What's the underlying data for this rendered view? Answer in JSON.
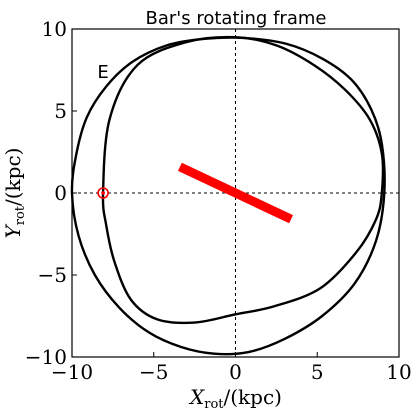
{
  "chart_data": {
    "type": "line",
    "title": "Bar's rotating frame",
    "xlabel": {
      "var": "X",
      "sub": "rot",
      "unit": "/(kpc)"
    },
    "ylabel": {
      "var": "Y",
      "sub": "rot",
      "unit": "/(kpc)"
    },
    "xlim": [
      -10,
      10
    ],
    "ylim": [
      -10,
      10
    ],
    "xticks": [
      -10,
      -5,
      0,
      5,
      10
    ],
    "yticks": [
      -10,
      -5,
      0,
      5,
      10
    ],
    "xtick_labels": [
      "−10",
      "−5",
      "0",
      "5",
      "10"
    ],
    "ytick_labels": [
      "−10",
      "−5",
      "0",
      "5",
      "10"
    ],
    "grid": false,
    "reference_lines": [
      {
        "orientation": "vertical",
        "value": 0,
        "style": "dashed"
      },
      {
        "orientation": "horizontal",
        "value": 0,
        "style": "dashed"
      }
    ],
    "annotations": [
      {
        "text": "E",
        "x": -8.1,
        "y": 7.0
      }
    ],
    "bar": {
      "x": [
        -3.4,
        3.4
      ],
      "y": [
        1.6,
        -1.6
      ],
      "color": "#ff0000"
    },
    "sun": {
      "x": -8.1,
      "y": 0.0,
      "color": "#ff0000"
    },
    "series": [
      {
        "color": "#000000",
        "x": [
          -10.0,
          -9.75,
          -9.1,
          -7.9,
          -6.3,
          -4.2,
          -1.9,
          0.6,
          3.1,
          5.3,
          7.1,
          8.3,
          8.95,
          9.1,
          8.6,
          7.3,
          5.3,
          3.0,
          0.8,
          -1.3,
          -3.3,
          -5.3,
          -7.1,
          -8.6,
          -9.6,
          -10.0
        ],
        "y": [
          0.0,
          2.3,
          4.6,
          6.5,
          8.0,
          9.0,
          9.4,
          9.45,
          9.1,
          8.2,
          6.9,
          5.1,
          3.0,
          0.0,
          -2.9,
          -5.5,
          -7.5,
          -8.9,
          -9.7,
          -9.8,
          -9.4,
          -8.5,
          -7.0,
          -5.0,
          -2.6,
          0.0
        ]
      },
      {
        "color": "#000000",
        "x": [
          -8.1,
          -7.7,
          -6.0,
          -3.0,
          0.0,
          2.5,
          4.8,
          6.7,
          8.2,
          8.95,
          8.95,
          8.6,
          7.4,
          5.2,
          2.4,
          0.0,
          -2.5,
          -4.8,
          -6.4,
          -7.4,
          -7.9,
          -8.1
        ],
        "y": [
          0.0,
          4.5,
          7.8,
          9.2,
          9.5,
          9.0,
          7.8,
          6.3,
          4.5,
          2.4,
          0.0,
          -1.6,
          -3.6,
          -5.8,
          -6.9,
          -7.4,
          -7.9,
          -7.7,
          -6.5,
          -4.2,
          -2.0,
          0.0
        ]
      }
    ]
  }
}
